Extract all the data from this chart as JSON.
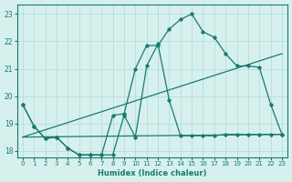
{
  "xlabel": "Humidex (Indice chaleur)",
  "bg_color": "#d6f0ee",
  "grid_color": "#b8ddd9",
  "line_color": "#1a7a6e",
  "xlim": [
    -0.5,
    23.5
  ],
  "ylim": [
    17.75,
    23.35
  ],
  "yticks": [
    18,
    19,
    20,
    21,
    22,
    23
  ],
  "xticks": [
    0,
    1,
    2,
    3,
    4,
    5,
    6,
    7,
    8,
    9,
    10,
    11,
    12,
    13,
    14,
    15,
    16,
    17,
    18,
    19,
    20,
    21,
    22,
    23
  ],
  "curve1_x": [
    0,
    1,
    2,
    3,
    4,
    5,
    6,
    7,
    8,
    9,
    10,
    11,
    12,
    13,
    14,
    15,
    16,
    17,
    18,
    19,
    20,
    21,
    22,
    23
  ],
  "curve1_y": [
    19.7,
    18.9,
    18.45,
    18.5,
    18.1,
    17.85,
    17.85,
    17.85,
    19.3,
    19.35,
    21.0,
    21.85,
    21.85,
    22.45,
    22.8,
    23.0,
    22.35,
    22.15,
    21.55,
    21.1,
    21.1,
    21.05,
    19.7,
    18.6
  ],
  "curve2_x": [
    0,
    1,
    2,
    3,
    4,
    5,
    6,
    7,
    8,
    9,
    10,
    11,
    12,
    13,
    14,
    15,
    16,
    17,
    18,
    19,
    20,
    21,
    22,
    23
  ],
  "curve2_y": [
    19.7,
    18.9,
    18.45,
    18.5,
    18.1,
    17.85,
    17.85,
    17.85,
    17.85,
    19.3,
    18.5,
    21.1,
    21.9,
    19.85,
    18.55,
    18.55,
    18.55,
    18.55,
    18.6,
    18.6,
    18.6,
    18.6,
    18.6,
    18.6
  ],
  "trend1_x": [
    0,
    23
  ],
  "trend1_y": [
    18.5,
    21.55
  ],
  "trend2_x": [
    0,
    23
  ],
  "trend2_y": [
    18.5,
    18.6
  ]
}
